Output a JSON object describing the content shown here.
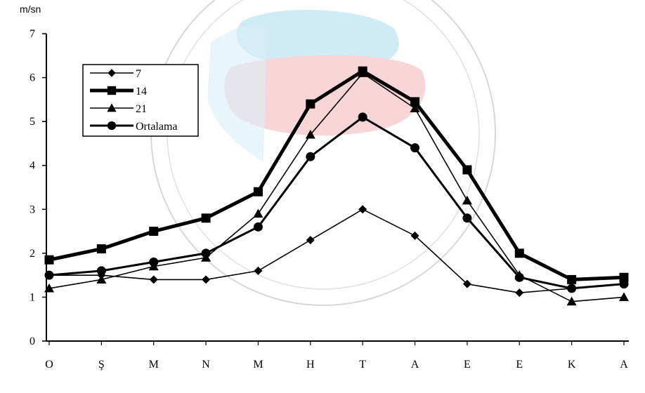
{
  "chart_data": {
    "type": "line",
    "title": "",
    "ylabel": "m/sn",
    "xlabel": "",
    "ylim": [
      0,
      7
    ],
    "yticks": [
      "0",
      "1",
      "2",
      "3",
      "4",
      "5",
      "6",
      "7"
    ],
    "categories": [
      "O",
      "Ş",
      "M",
      "N",
      "M",
      "H",
      "T",
      "A",
      "E",
      "E",
      "K",
      "A"
    ],
    "grid": false,
    "legend_position": "top-left",
    "series": [
      {
        "name": "7",
        "marker": "diamond",
        "color": "#000000",
        "values": [
          1.5,
          1.5,
          1.4,
          1.4,
          1.6,
          2.3,
          3.0,
          2.4,
          1.3,
          1.1,
          1.2,
          1.3
        ]
      },
      {
        "name": "14",
        "marker": "square",
        "color": "#000000",
        "values": [
          1.85,
          2.1,
          2.5,
          2.8,
          3.4,
          5.4,
          6.15,
          5.45,
          3.9,
          2.0,
          1.4,
          1.45
        ]
      },
      {
        "name": "21",
        "marker": "triangle",
        "color": "#000000",
        "values": [
          1.2,
          1.4,
          1.7,
          1.9,
          2.9,
          4.7,
          6.1,
          5.3,
          3.2,
          1.5,
          0.9,
          1.0
        ]
      },
      {
        "name": "Ortalama",
        "marker": "circle",
        "color": "#000000",
        "values": [
          1.5,
          1.6,
          1.8,
          2.0,
          2.6,
          4.2,
          5.1,
          4.4,
          2.8,
          1.45,
          1.2,
          1.3
        ]
      }
    ]
  }
}
